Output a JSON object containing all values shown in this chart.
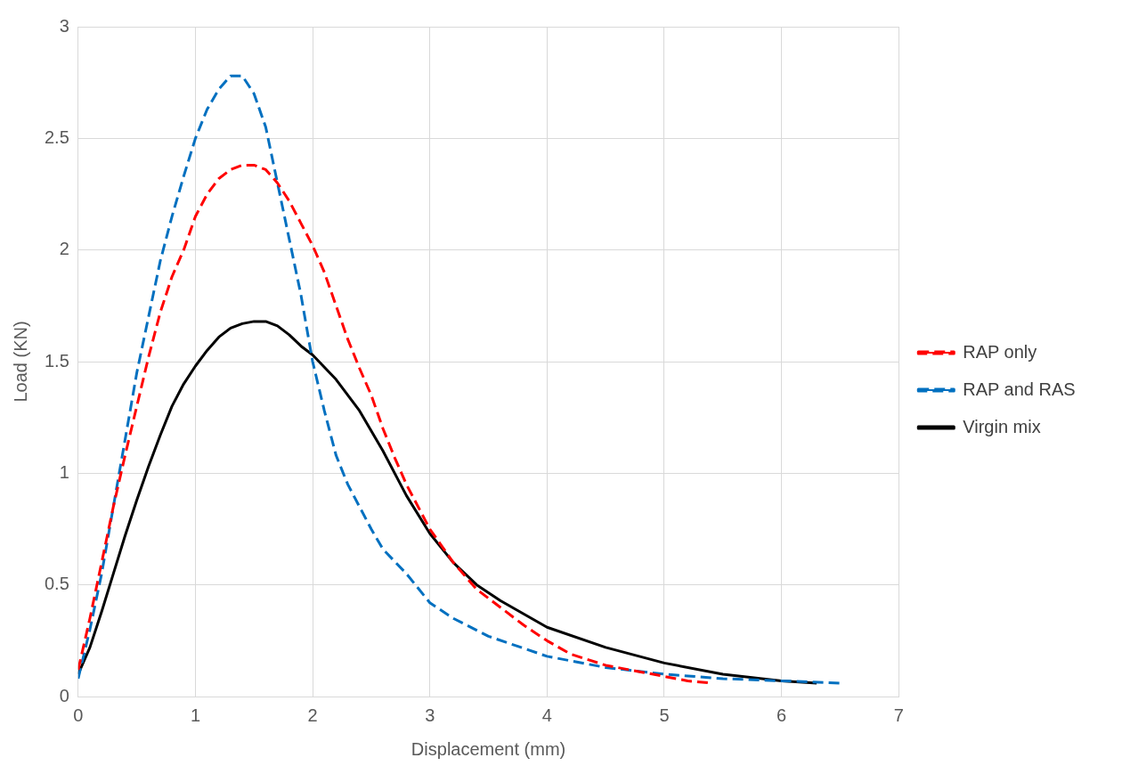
{
  "chart_data": {
    "type": "line",
    "xlabel": "Displacement (mm)",
    "ylabel": "Load (KN)",
    "xlim": [
      0,
      7
    ],
    "xticks": [
      0,
      1,
      2,
      3,
      4,
      5,
      6,
      7
    ],
    "ylim": [
      0,
      3
    ],
    "yticks": [
      0,
      0.5,
      1,
      1.5,
      2,
      2.5,
      3
    ],
    "grid": true,
    "legend": "right",
    "marker": "none",
    "series": [
      {
        "name": "RAP only",
        "color": "#ff0000",
        "line_style": "dashed",
        "x": [
          0,
          0.1,
          0.2,
          0.3,
          0.4,
          0.5,
          0.6,
          0.7,
          0.8,
          0.9,
          1.0,
          1.1,
          1.2,
          1.3,
          1.4,
          1.5,
          1.6,
          1.7,
          1.8,
          1.9,
          2.0,
          2.1,
          2.2,
          2.3,
          2.4,
          2.5,
          2.6,
          2.7,
          2.8,
          3.0,
          3.2,
          3.4,
          3.6,
          3.8,
          4.0,
          4.2,
          4.5,
          4.8,
          5.0,
          5.2,
          5.4
        ],
        "values": [
          0.12,
          0.35,
          0.6,
          0.85,
          1.08,
          1.3,
          1.52,
          1.72,
          1.88,
          2.0,
          2.15,
          2.25,
          2.32,
          2.36,
          2.38,
          2.38,
          2.36,
          2.3,
          2.22,
          2.12,
          2.02,
          1.9,
          1.75,
          1.6,
          1.47,
          1.35,
          1.2,
          1.07,
          0.95,
          0.75,
          0.6,
          0.48,
          0.4,
          0.32,
          0.25,
          0.19,
          0.14,
          0.11,
          0.09,
          0.07,
          0.06
        ]
      },
      {
        "name": "RAP and RAS",
        "color": "#0070c0",
        "line_style": "dashed",
        "x": [
          0,
          0.1,
          0.2,
          0.3,
          0.4,
          0.5,
          0.6,
          0.7,
          0.8,
          0.9,
          1.0,
          1.1,
          1.2,
          1.3,
          1.4,
          1.5,
          1.6,
          1.7,
          1.8,
          1.9,
          2.0,
          2.1,
          2.2,
          2.3,
          2.4,
          2.5,
          2.6,
          2.8,
          3.0,
          3.2,
          3.5,
          4.0,
          4.5,
          5.0,
          5.5,
          6.0,
          6.5
        ],
        "values": [
          0.08,
          0.3,
          0.55,
          0.85,
          1.15,
          1.45,
          1.7,
          1.95,
          2.15,
          2.33,
          2.5,
          2.63,
          2.72,
          2.78,
          2.78,
          2.7,
          2.55,
          2.3,
          2.05,
          1.8,
          1.5,
          1.28,
          1.08,
          0.95,
          0.85,
          0.75,
          0.66,
          0.55,
          0.42,
          0.35,
          0.27,
          0.18,
          0.13,
          0.1,
          0.08,
          0.07,
          0.06
        ]
      },
      {
        "name": "Virgin mix",
        "color": "#000000",
        "line_style": "solid",
        "x": [
          0,
          0.1,
          0.2,
          0.3,
          0.4,
          0.5,
          0.6,
          0.7,
          0.8,
          0.9,
          1.0,
          1.1,
          1.2,
          1.3,
          1.4,
          1.5,
          1.6,
          1.7,
          1.8,
          1.9,
          2.0,
          2.2,
          2.4,
          2.6,
          2.8,
          3.0,
          3.2,
          3.4,
          3.6,
          3.8,
          4.0,
          4.5,
          5.0,
          5.5,
          6.0,
          6.3
        ],
        "values": [
          0.1,
          0.22,
          0.38,
          0.55,
          0.72,
          0.88,
          1.03,
          1.17,
          1.3,
          1.4,
          1.48,
          1.55,
          1.61,
          1.65,
          1.67,
          1.68,
          1.68,
          1.66,
          1.62,
          1.57,
          1.53,
          1.42,
          1.28,
          1.1,
          0.9,
          0.73,
          0.6,
          0.5,
          0.43,
          0.37,
          0.31,
          0.22,
          0.15,
          0.1,
          0.07,
          0.06
        ]
      }
    ]
  }
}
